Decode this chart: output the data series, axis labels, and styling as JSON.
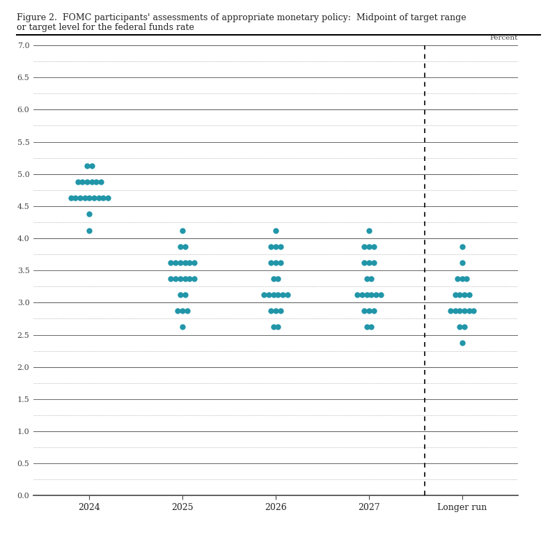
{
  "title_line1": "Figure 2.  FOMC participants' assessments of appropriate monetary policy:  Midpoint of target range",
  "title_line2": "or target level for the federal funds rate",
  "ylabel": "Percent",
  "x_categories": [
    "2024",
    "2025",
    "2026",
    "2027",
    "Longer run"
  ],
  "x_positions": [
    1,
    2,
    3,
    4,
    5
  ],
  "dashed_line_x": 4.6,
  "ylim": [
    0.0,
    7.0
  ],
  "yticks": [
    0.0,
    0.5,
    1.0,
    1.5,
    2.0,
    2.5,
    3.0,
    3.5,
    4.0,
    4.5,
    5.0,
    5.5,
    6.0,
    6.5,
    7.0
  ],
  "dot_color": "#2196A8",
  "dot_size": 6,
  "dots": {
    "2024": [
      5.125,
      5.125,
      4.875,
      4.875,
      4.875,
      4.875,
      4.875,
      4.875,
      4.625,
      4.625,
      4.625,
      4.625,
      4.625,
      4.625,
      4.625,
      4.625,
      4.625,
      4.375,
      4.125
    ],
    "2025": [
      4.125,
      3.875,
      3.875,
      3.625,
      3.625,
      3.625,
      3.625,
      3.625,
      3.625,
      3.375,
      3.375,
      3.375,
      3.375,
      3.375,
      3.375,
      3.125,
      3.125,
      2.875,
      2.875,
      2.875,
      2.625
    ],
    "2026": [
      4.125,
      3.875,
      3.875,
      3.875,
      3.625,
      3.625,
      3.625,
      3.375,
      3.375,
      3.125,
      3.125,
      3.125,
      3.125,
      3.125,
      3.125,
      2.875,
      2.875,
      2.875,
      2.625,
      2.625
    ],
    "2027": [
      4.125,
      3.875,
      3.875,
      3.875,
      3.625,
      3.625,
      3.625,
      3.375,
      3.375,
      3.125,
      3.125,
      3.125,
      3.125,
      3.125,
      3.125,
      2.875,
      2.875,
      2.875,
      2.625,
      2.625
    ],
    "Longer run": [
      3.875,
      3.625,
      3.375,
      3.375,
      3.375,
      3.125,
      3.125,
      3.125,
      3.125,
      2.875,
      2.875,
      2.875,
      2.875,
      2.875,
      2.875,
      2.625,
      2.625,
      2.375
    ]
  },
  "grid_major_color": "#808080",
  "grid_minor_color": "#b0b0b0",
  "grid_dotted_color": "#909090",
  "background_color": "#ffffff"
}
